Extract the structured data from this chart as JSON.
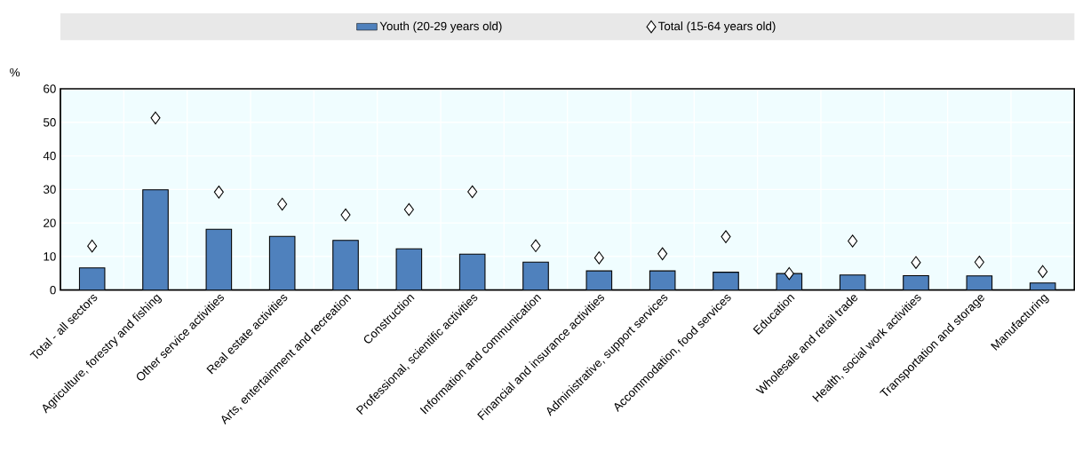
{
  "chart_data": {
    "type": "bar",
    "ylabel": "%",
    "categories": [
      "Total - all sectors",
      "Agriculture, forestry and fishing",
      "Other service activities",
      "Real estate activities",
      "Arts, entertainment and recreation",
      "Construction",
      "Professional, scientific activities",
      "Information and communication",
      "Financial and insurance activities",
      "Administrative, support services",
      "Accommodation, food services",
      "Education",
      "Wholesale and retail trade",
      "Health, social work activities",
      "Transportation and storage",
      "Manufacturing"
    ],
    "series": [
      {
        "name": "Youth (20-29 years old)",
        "color": "#4f81bd",
        "values": [
          6.6,
          29.9,
          18.1,
          16.0,
          14.8,
          12.3,
          10.7,
          8.3,
          5.7,
          5.7,
          5.3,
          4.9,
          4.5,
          4.3,
          4.2,
          2.1
        ]
      },
      {
        "name": "Total (15-64 years old)",
        "type": "scatter",
        "marker": "diamond",
        "color": "#ffffff",
        "values": [
          13.1,
          51.3,
          29.2,
          25.6,
          22.4,
          24.0,
          29.3,
          13.2,
          9.6,
          10.8,
          15.9,
          4.9,
          14.6,
          8.2,
          8.3,
          5.5
        ]
      }
    ],
    "ylim": [
      0,
      60
    ],
    "yticks": [
      0,
      10,
      20,
      30,
      40,
      50,
      60
    ],
    "grid": true,
    "legend": "top"
  }
}
